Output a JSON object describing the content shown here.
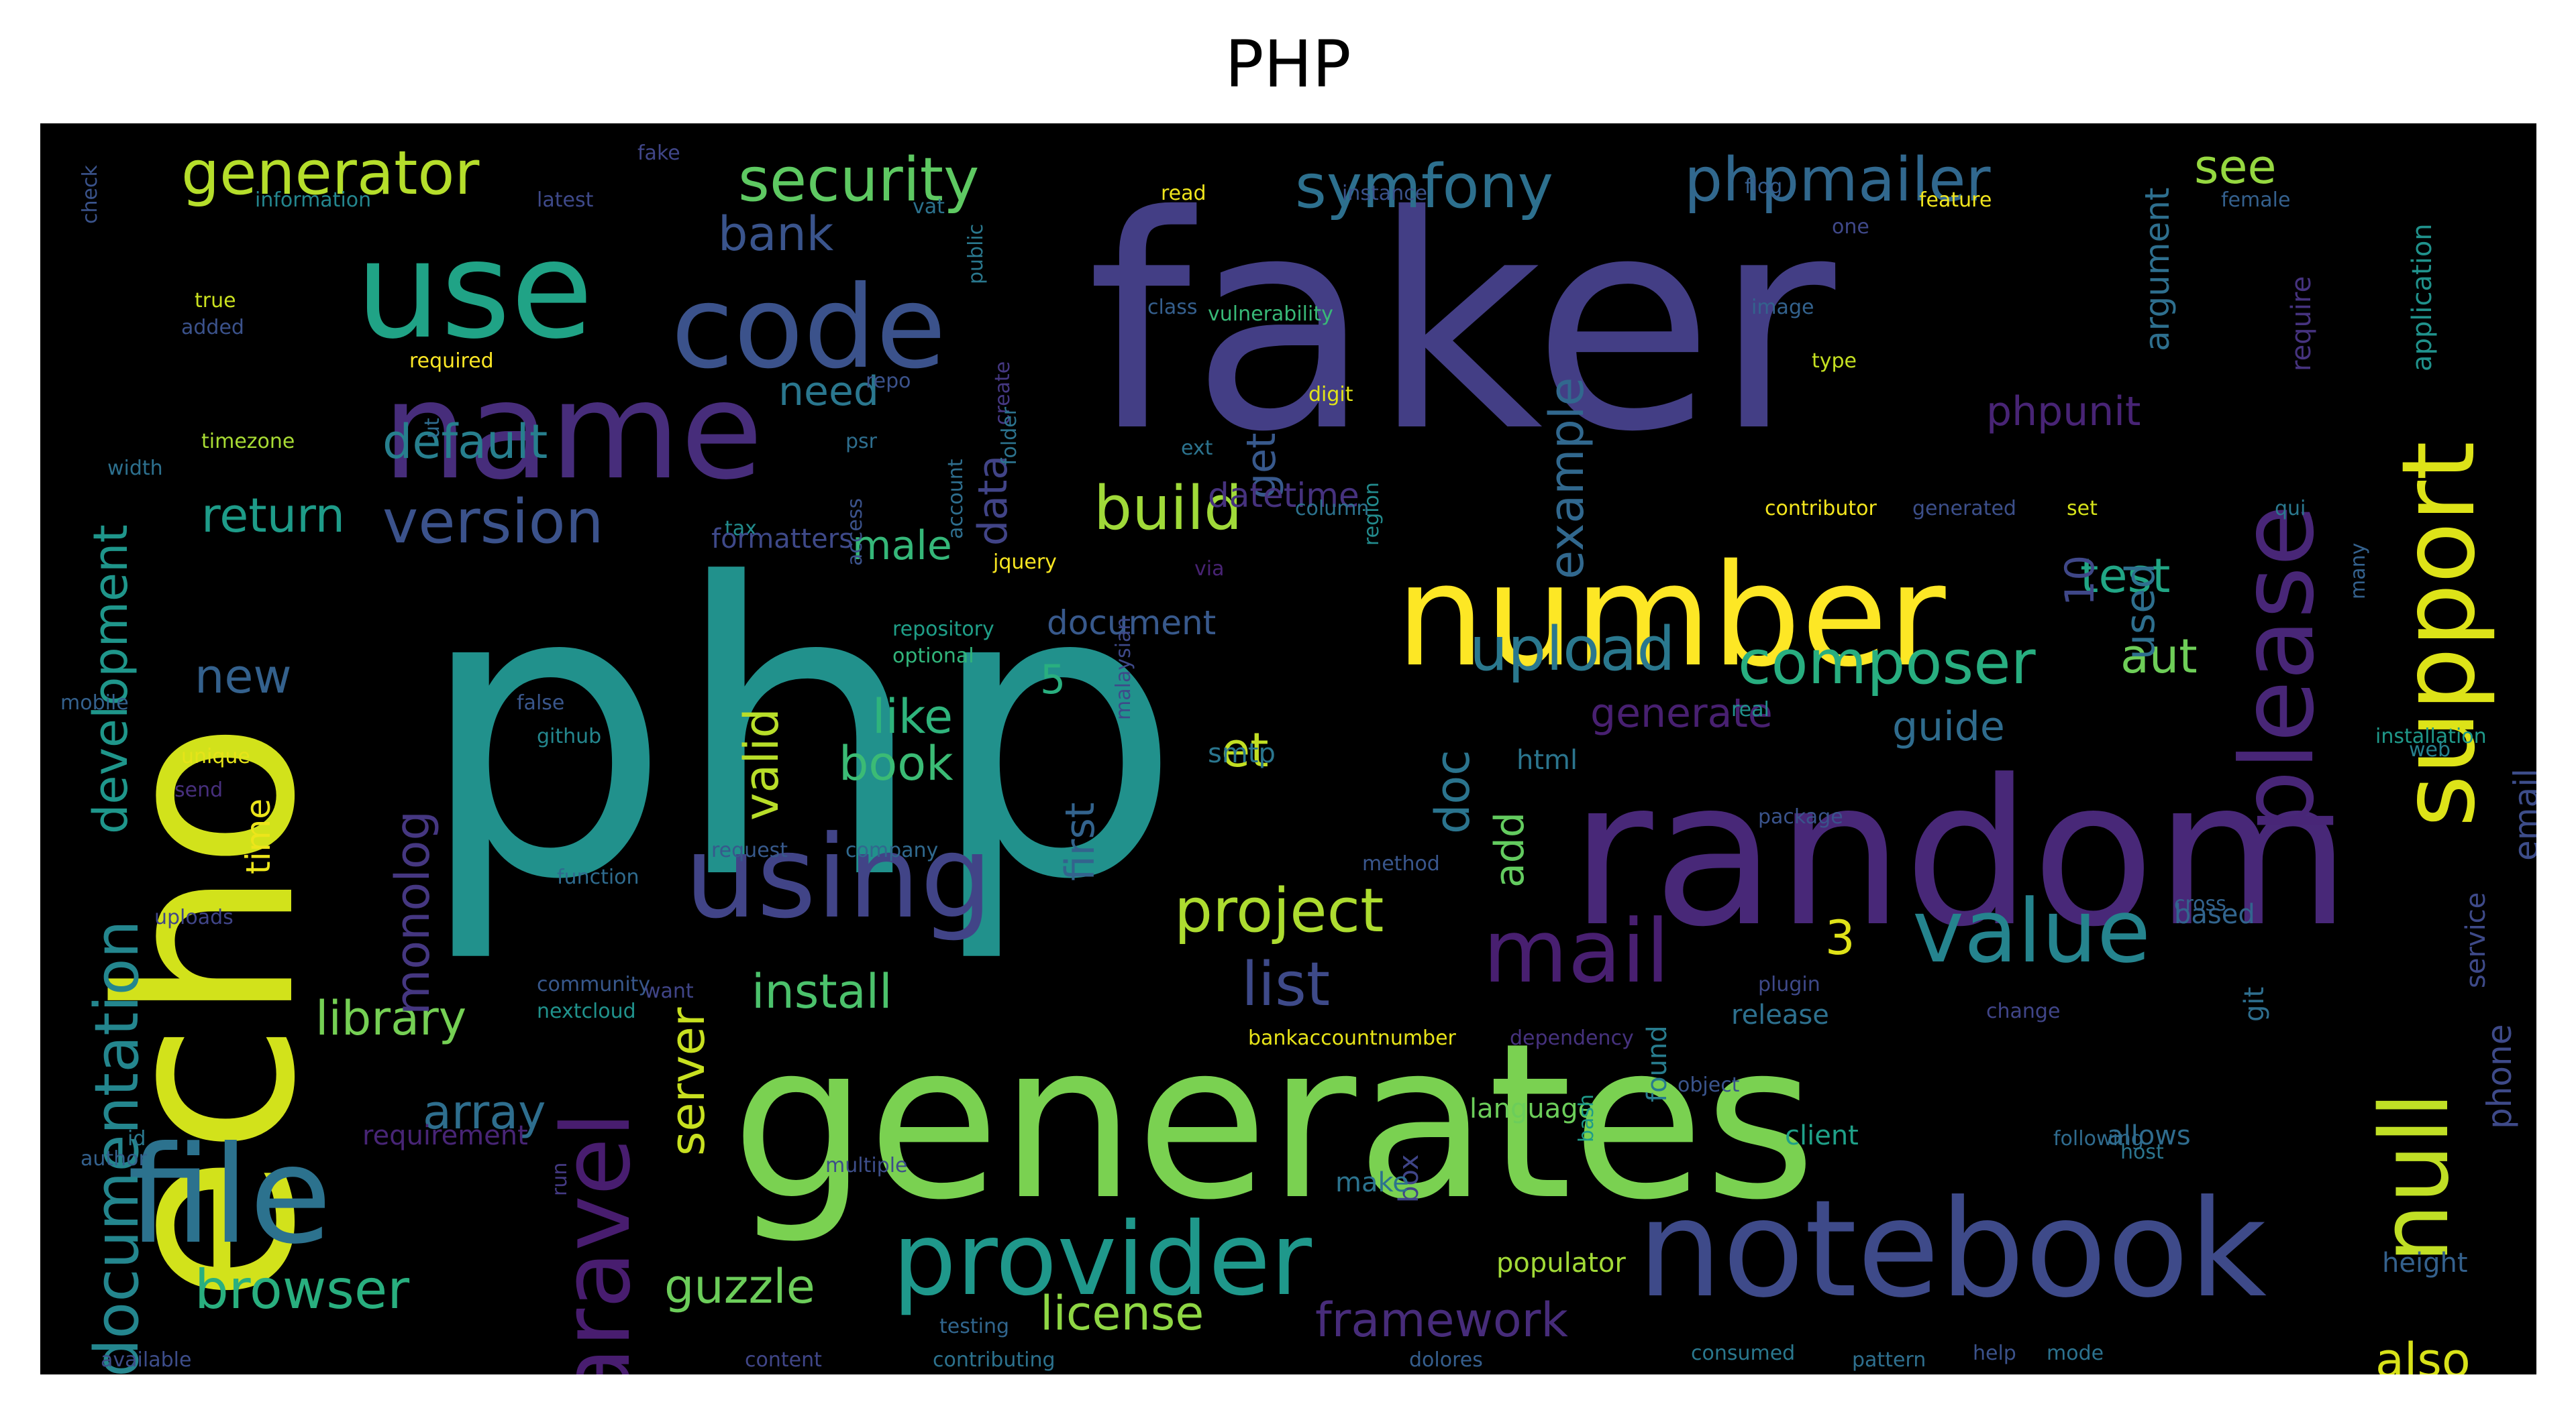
{
  "title": "PHP",
  "colors": {
    "background": "#000000",
    "palette": [
      "#fde725",
      "#b5de2b",
      "#6ece58",
      "#35b779",
      "#1f9e89",
      "#26828e",
      "#31688e",
      "#3e4989",
      "#482878",
      "#440154"
    ]
  },
  "words": [
    {
      "text": "php",
      "color": "#21918c"
    },
    {
      "text": "faker",
      "color": "#433e85"
    },
    {
      "text": "echo",
      "color": "#d2e21b"
    },
    {
      "text": "generates",
      "color": "#7ad151"
    },
    {
      "text": "random",
      "color": "#482878"
    },
    {
      "text": "number",
      "color": "#fde725"
    },
    {
      "text": "notebook",
      "color": "#3e4a89"
    },
    {
      "text": "file",
      "color": "#2c728e"
    },
    {
      "text": "name",
      "color": "#472d7b"
    },
    {
      "text": "use",
      "color": "#20a386"
    },
    {
      "text": "code",
      "color": "#3b528b"
    },
    {
      "text": "support",
      "color": "#dde318"
    },
    {
      "text": "using",
      "color": "#414487"
    },
    {
      "text": "provider",
      "color": "#1f988b"
    },
    {
      "text": "null",
      "color": "#c0df25"
    },
    {
      "text": "please",
      "color": "#482677"
    },
    {
      "text": "laravel",
      "color": "#481d6f"
    },
    {
      "text": "mail",
      "color": "#481f70"
    },
    {
      "text": "value",
      "color": "#25848e"
    },
    {
      "text": "composer",
      "color": "#28ae80"
    },
    {
      "text": "phpmailer",
      "color": "#31688e"
    },
    {
      "text": "symfony",
      "color": "#2d708e"
    },
    {
      "text": "security",
      "color": "#5ec962"
    },
    {
      "text": "generator",
      "color": "#b5de2b"
    },
    {
      "text": "documentation",
      "color": "#24868e"
    },
    {
      "text": "version",
      "color": "#3b528b"
    },
    {
      "text": "build",
      "color": "#a0da39"
    },
    {
      "text": "project",
      "color": "#addc30"
    },
    {
      "text": "upload",
      "color": "#2a788e"
    },
    {
      "text": "browser",
      "color": "#29af7f"
    },
    {
      "text": "list",
      "color": "#3e4a89"
    },
    {
      "text": "library",
      "color": "#75d054"
    },
    {
      "text": "framework",
      "color": "#472c7a"
    },
    {
      "text": "license",
      "color": "#8fd744"
    },
    {
      "text": "guzzle",
      "color": "#6ccd5a"
    },
    {
      "text": "development",
      "color": "#1f968b"
    },
    {
      "text": "default",
      "color": "#277f8e"
    },
    {
      "text": "return",
      "color": "#1e9c89"
    },
    {
      "text": "new",
      "color": "#34618d"
    },
    {
      "text": "monolog",
      "color": "#453781"
    },
    {
      "text": "array",
      "color": "#2e6e8e"
    },
    {
      "text": "server",
      "color": "#c8e020"
    },
    {
      "text": "install",
      "color": "#4cc26c"
    },
    {
      "text": "like",
      "color": "#2fb47c"
    },
    {
      "text": "book",
      "color": "#3bbb75"
    },
    {
      "text": "doc",
      "color": "#2b748e"
    },
    {
      "text": "example",
      "color": "#31688e"
    },
    {
      "text": "test",
      "color": "#21a685"
    },
    {
      "text": "aut",
      "color": "#6ece58"
    },
    {
      "text": "see",
      "color": "#95d840"
    },
    {
      "text": "also",
      "color": "#d8e219"
    },
    {
      "text": "bank",
      "color": "#3a548c"
    },
    {
      "text": "data",
      "color": "#414487"
    },
    {
      "text": "need",
      "color": "#2a778e"
    },
    {
      "text": "get",
      "color": "#38598c"
    },
    {
      "text": "used",
      "color": "#2e6f8e"
    },
    {
      "text": "add",
      "color": "#63cb5f"
    },
    {
      "text": "et",
      "color": "#c2df23"
    },
    {
      "text": "valid",
      "color": "#b8de29"
    },
    {
      "text": "3",
      "color": "#dfe318"
    },
    {
      "text": "5",
      "color": "#29af7f"
    },
    {
      "text": "10",
      "color": "#3f4788"
    },
    {
      "text": "information",
      "color": "#24868e"
    },
    {
      "text": "latest",
      "color": "#3e4989"
    },
    {
      "text": "fake",
      "color": "#404688"
    },
    {
      "text": "read",
      "color": "#efe51c"
    },
    {
      "text": "vat",
      "color": "#2c728e"
    },
    {
      "text": "instance",
      "color": "#3b528b"
    },
    {
      "text": "feature",
      "color": "#f1e51d"
    },
    {
      "text": "female",
      "color": "#34608d"
    },
    {
      "text": "one",
      "color": "#3f4889"
    },
    {
      "text": "flog",
      "color": "#365d8d"
    },
    {
      "text": "true",
      "color": "#cae11f"
    },
    {
      "text": "added",
      "color": "#3b528b"
    },
    {
      "text": "public",
      "color": "#2a788e"
    },
    {
      "text": "class",
      "color": "#355f8d"
    },
    {
      "text": "vulnerability",
      "color": "#38b977"
    },
    {
      "text": "image",
      "color": "#33628d"
    },
    {
      "text": "type",
      "color": "#c5e021"
    },
    {
      "text": "argument",
      "color": "#2e6f8e"
    },
    {
      "text": "require",
      "color": "#46337f"
    },
    {
      "text": "application",
      "color": "#20928c"
    },
    {
      "text": "phpunit",
      "color": "#482475"
    },
    {
      "text": "required",
      "color": "#fde725"
    },
    {
      "text": "repo",
      "color": "#3b528b"
    },
    {
      "text": "create",
      "color": "#453882"
    },
    {
      "text": "digit",
      "color": "#e2e418"
    },
    {
      "text": "ext",
      "color": "#2c738e"
    },
    {
      "text": "timezone",
      "color": "#a8db34"
    },
    {
      "text": "ut",
      "color": "#2f6c8e"
    },
    {
      "text": "psr",
      "color": "#2e6e8e"
    },
    {
      "text": "datetime",
      "color": "#46327e"
    },
    {
      "text": "column",
      "color": "#2c728e"
    },
    {
      "text": "contributor",
      "color": "#f4e61e"
    },
    {
      "text": "generated",
      "color": "#3c4f8a"
    },
    {
      "text": "set",
      "color": "#d5e21a"
    },
    {
      "text": "tax",
      "color": "#228c8d"
    },
    {
      "text": "formatters",
      "color": "#3e4989"
    },
    {
      "text": "male",
      "color": "#35b779"
    },
    {
      "text": "access",
      "color": "#3b528b"
    },
    {
      "text": "via",
      "color": "#482374"
    },
    {
      "text": "region",
      "color": "#228b8d"
    },
    {
      "text": "qui",
      "color": "#2a788e"
    },
    {
      "text": "many",
      "color": "#34618d"
    },
    {
      "text": "document",
      "color": "#38598c"
    },
    {
      "text": "repository",
      "color": "#1f9f88"
    },
    {
      "text": "optional",
      "color": "#31b57b"
    },
    {
      "text": "malaysian",
      "color": "#3e4989"
    },
    {
      "text": "first",
      "color": "#33638d"
    },
    {
      "text": "false",
      "color": "#39568c"
    },
    {
      "text": "github",
      "color": "#24878e"
    },
    {
      "text": "generate",
      "color": "#482071"
    },
    {
      "text": "real",
      "color": "#20928c"
    },
    {
      "text": "guide",
      "color": "#2f6c8e"
    },
    {
      "text": "installation",
      "color": "#1f998a"
    },
    {
      "text": "web",
      "color": "#26818e"
    },
    {
      "text": "email",
      "color": "#3d4d8a"
    },
    {
      "text": "mobile",
      "color": "#34618d"
    },
    {
      "text": "unique",
      "color": "#e5e419"
    },
    {
      "text": "send",
      "color": "#472f7d"
    },
    {
      "text": "smtp",
      "color": "#2a768e"
    },
    {
      "text": "html",
      "color": "#2b758e"
    },
    {
      "text": "package",
      "color": "#3a538b"
    },
    {
      "text": "request",
      "color": "#37598c"
    },
    {
      "text": "company",
      "color": "#30698e"
    },
    {
      "text": "method",
      "color": "#39568c"
    },
    {
      "text": "function",
      "color": "#2f6b8e"
    },
    {
      "text": "uploads",
      "color": "#404588"
    },
    {
      "text": "time",
      "color": "#ece51b"
    },
    {
      "text": "based",
      "color": "#32658e"
    },
    {
      "text": "community",
      "color": "#38588c"
    },
    {
      "text": "nextcloud",
      "color": "#20928c"
    },
    {
      "text": "bankaccountnumber",
      "color": "#e7e419"
    },
    {
      "text": "release",
      "color": "#2d708e"
    },
    {
      "text": "change",
      "color": "#404588"
    },
    {
      "text": "plugin",
      "color": "#3e4989"
    },
    {
      "text": "dependency",
      "color": "#46327e"
    },
    {
      "text": "language",
      "color": "#6ccd5a"
    },
    {
      "text": "git",
      "color": "#2e6e8e"
    },
    {
      "text": "service",
      "color": "#3e4a89"
    },
    {
      "text": "client",
      "color": "#1fa088"
    },
    {
      "text": "allows",
      "color": "#2f6c8e"
    },
    {
      "text": "requirement",
      "color": "#482576"
    },
    {
      "text": "id",
      "color": "#2a788e"
    },
    {
      "text": "box",
      "color": "#404588"
    },
    {
      "text": "make",
      "color": "#2c738e"
    },
    {
      "text": "populator",
      "color": "#a2da37"
    },
    {
      "text": "bash",
      "color": "#1e9b8a"
    },
    {
      "text": "phone",
      "color": "#3e4a89"
    },
    {
      "text": "height",
      "color": "#34618d"
    },
    {
      "text": "following",
      "color": "#2f6b8e"
    },
    {
      "text": "available",
      "color": "#3d4d8a"
    },
    {
      "text": "content",
      "color": "#404688"
    },
    {
      "text": "contributing",
      "color": "#2c728e"
    },
    {
      "text": "testing",
      "color": "#31668e"
    },
    {
      "text": "dolores",
      "color": "#355e8d"
    },
    {
      "text": "pattern",
      "color": "#2e6f8e"
    },
    {
      "text": "consumed",
      "color": "#2a788e"
    },
    {
      "text": "help",
      "color": "#3b528b"
    },
    {
      "text": "mode",
      "color": "#2c728e"
    },
    {
      "text": "multiple",
      "color": "#3d4e8a"
    },
    {
      "text": "host",
      "color": "#2b758e"
    },
    {
      "text": "run",
      "color": "#443a83"
    },
    {
      "text": "want",
      "color": "#404588"
    },
    {
      "text": "found",
      "color": "#287c8e"
    },
    {
      "text": "object",
      "color": "#3a548c"
    },
    {
      "text": "author",
      "color": "#34618d"
    },
    {
      "text": "account",
      "color": "#2e6e8e"
    },
    {
      "text": "jquery",
      "color": "#f8e621"
    },
    {
      "text": "width",
      "color": "#2d708e"
    },
    {
      "text": "check",
      "color": "#3a538b"
    },
    {
      "text": "folder",
      "color": "#2c738e"
    },
    {
      "text": "cross",
      "color": "#33638d"
    }
  ]
}
